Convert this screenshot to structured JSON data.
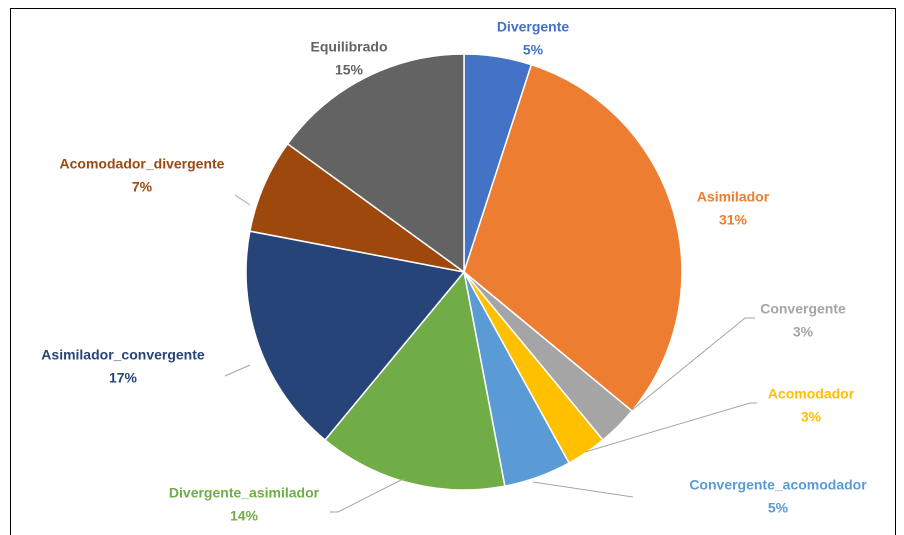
{
  "chart_data": {
    "type": "pie",
    "categories": [
      "Divergente",
      "Asimilador",
      "Convergente",
      "Acomodador",
      "Convergente_acomodador",
      "Divergente_asimilador",
      "Asimilador_convergente",
      "Acomodador_divergente",
      "Equilibrado"
    ],
    "values": [
      5,
      31,
      3,
      3,
      5,
      14,
      17,
      7,
      15
    ],
    "value_labels": [
      "5%",
      "31%",
      "3%",
      "3%",
      "5%",
      "14%",
      "17%",
      "7%",
      "15%"
    ],
    "colors": [
      "#4472c4",
      "#ed7d31",
      "#a5a5a5",
      "#ffc000",
      "#5b9bd5",
      "#70ad47",
      "#264478",
      "#9e480e",
      "#636363"
    ]
  }
}
